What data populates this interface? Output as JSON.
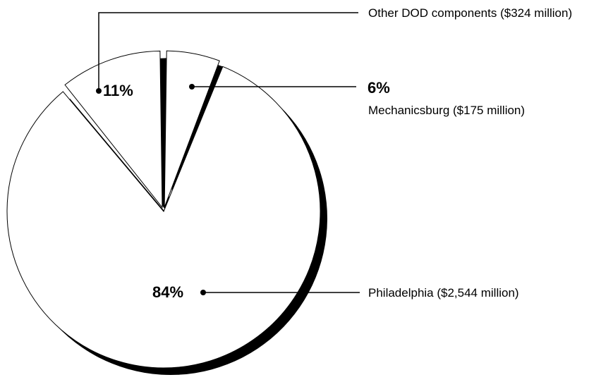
{
  "chart_data": {
    "type": "pie",
    "categories": [
      "Other DOD components ($324 million)",
      "Mechanicsburg ($175 million)",
      "Philadelphia ($2,544 million)"
    ],
    "values": [
      11,
      6,
      84
    ],
    "value_labels": [
      "11%",
      "6%",
      "84%"
    ],
    "color": "#ffffff"
  }
}
